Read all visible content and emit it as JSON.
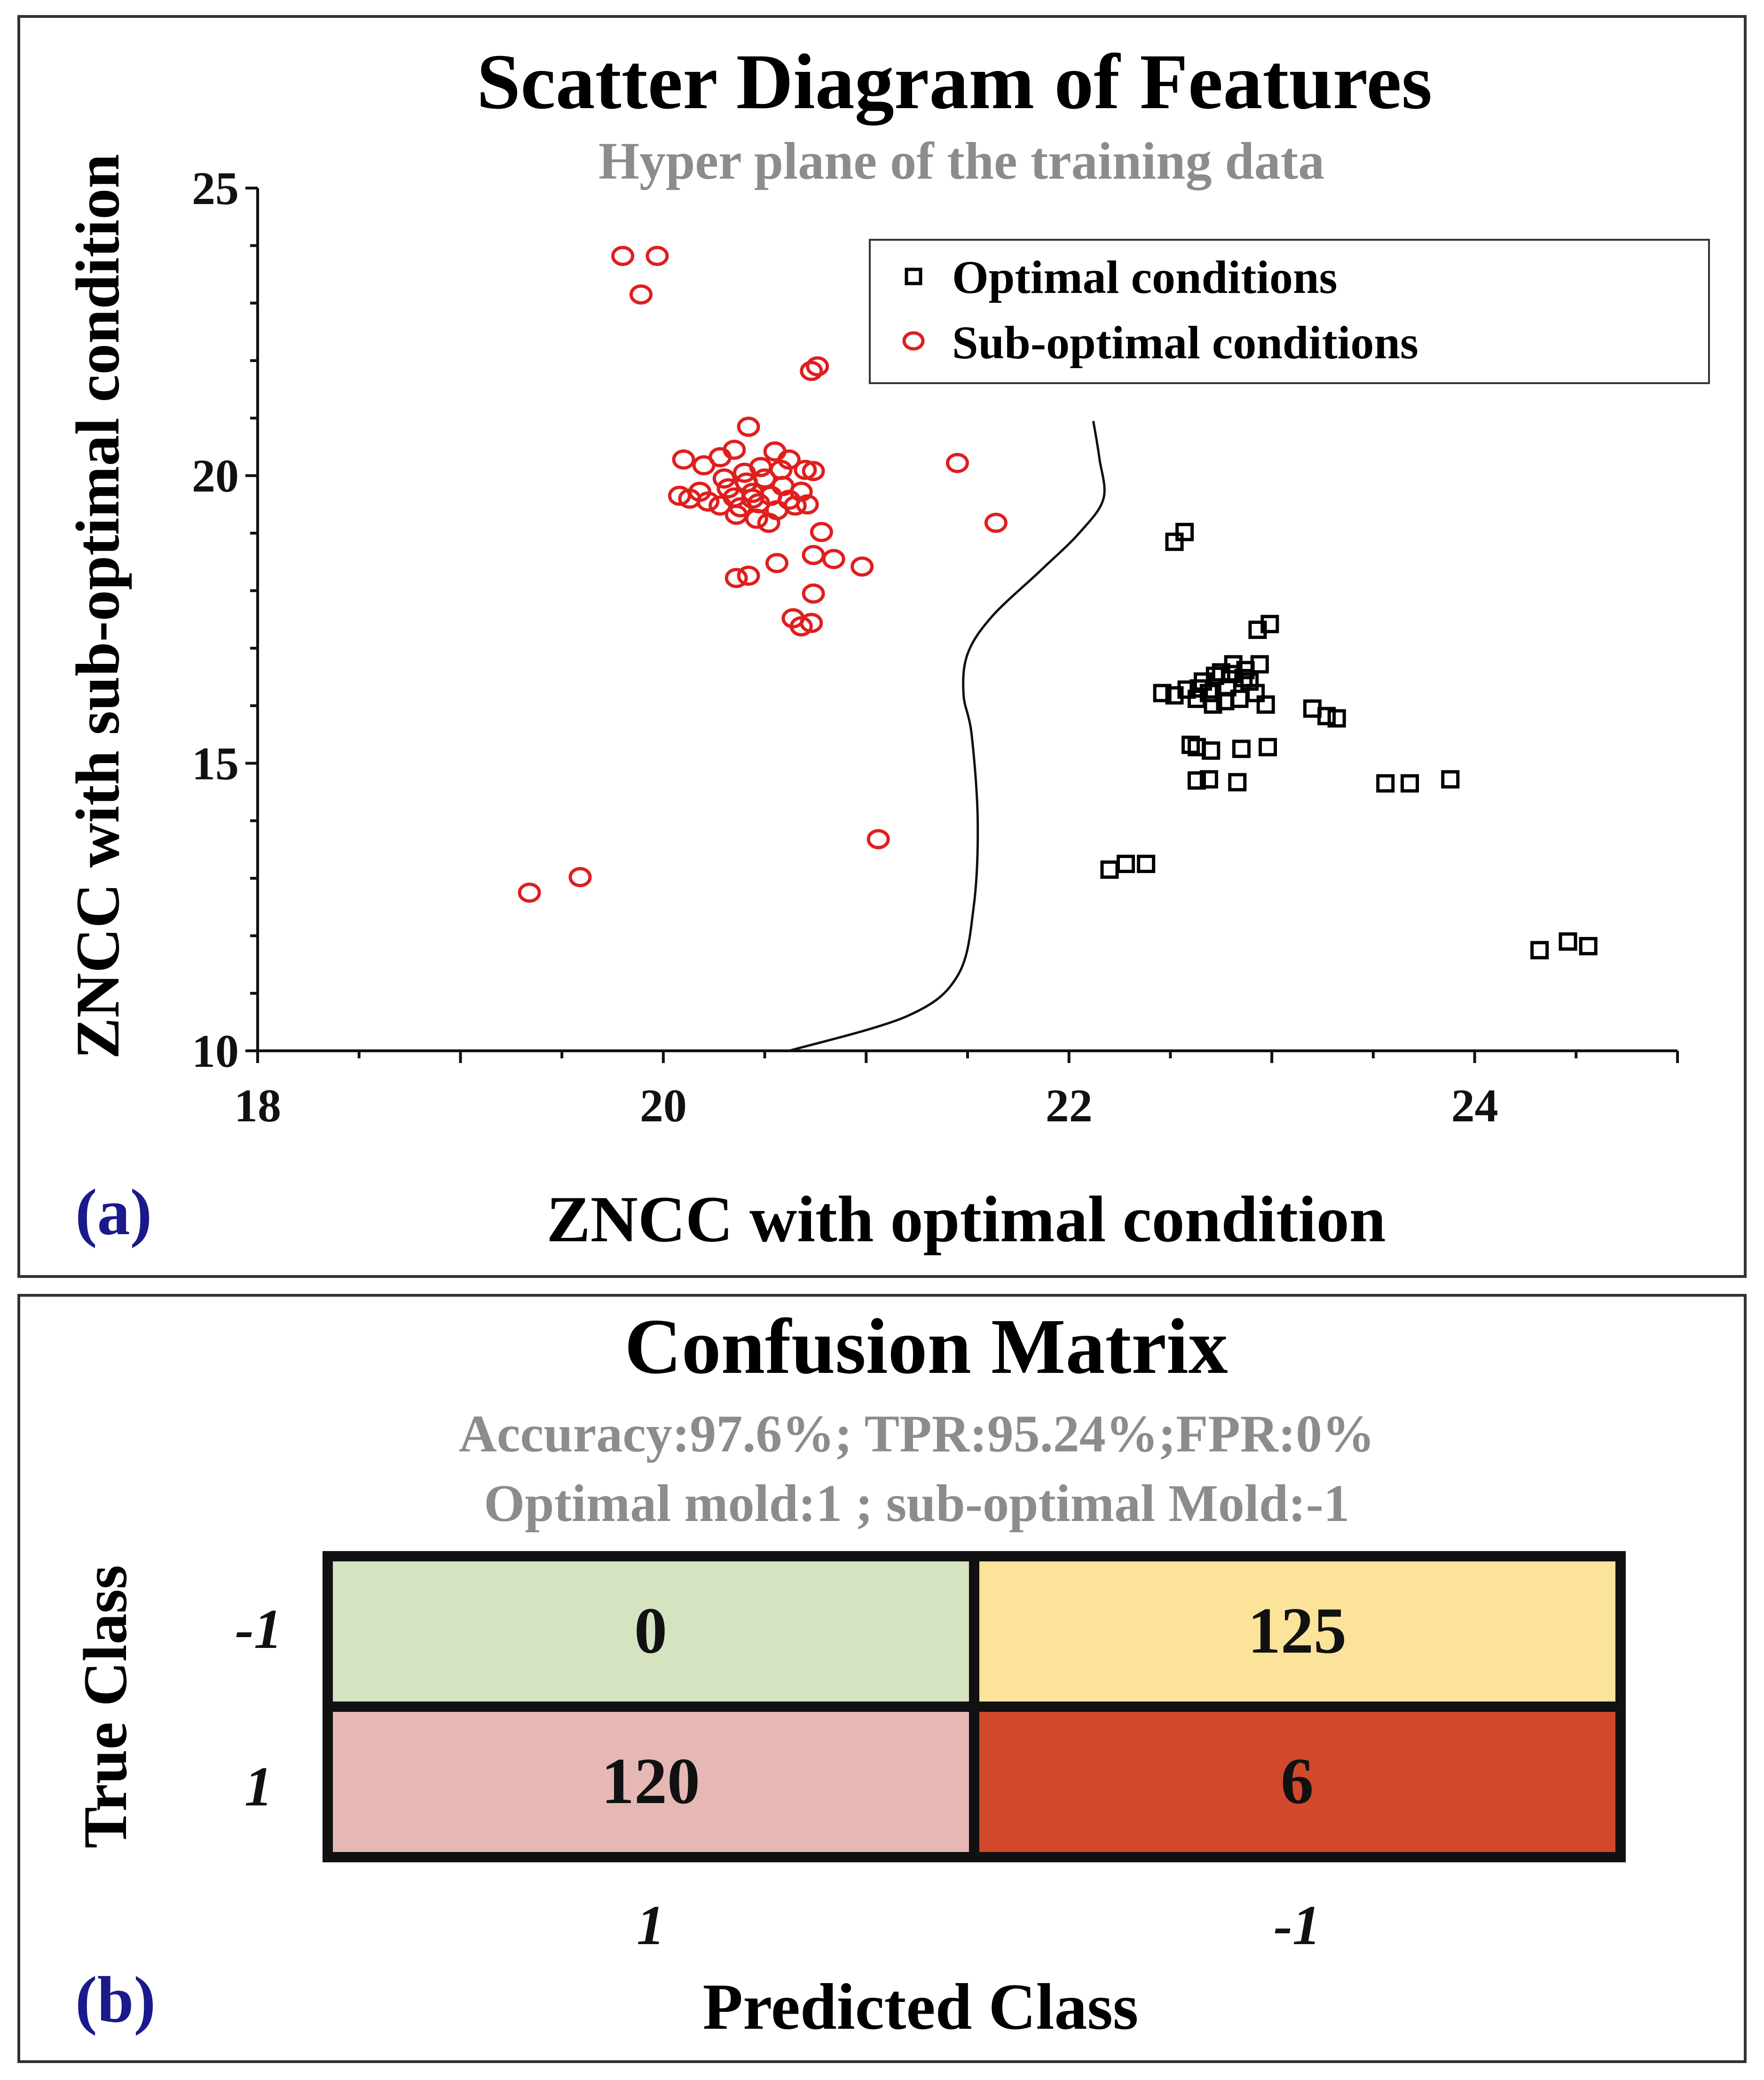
{
  "colors": {
    "frame": "#333333",
    "subtitle": "#8c8c8c",
    "panel_label": "#1a1a8c",
    "optimal": "#000000",
    "suboptimal": "#e01e1e",
    "cell_tl": "#d5e3c0",
    "cell_tr": "#fbe39a",
    "cell_bl": "#e6b8b5",
    "cell_br": "#d1482c"
  },
  "panel_a": {
    "label": "(a)",
    "chart_data": {
      "type": "scatter",
      "title": "Scatter Diagram of Features",
      "subtitle": "Hyper plane of the training data",
      "xlabel": "ZNCC with optimal condition",
      "ylabel": "ZNCC with sub-optimal condition",
      "xlim": [
        18,
        25
      ],
      "ylim": [
        10,
        25
      ],
      "xticks": [
        18,
        20,
        22,
        24
      ],
      "yticks": [
        10,
        15,
        20,
        25
      ],
      "legend": {
        "placement": "top-right",
        "entries": [
          "Optimal conditions",
          "Sub-optimal conditions"
        ]
      },
      "series": [
        {
          "name": "Optimal conditions",
          "marker": "square",
          "points": [
            [
              22.52,
              18.85
            ],
            [
              22.57,
              19.02
            ],
            [
              22.93,
              17.32
            ],
            [
              22.99,
              17.42
            ],
            [
              22.46,
              16.22
            ],
            [
              22.52,
              16.18
            ],
            [
              22.58,
              16.28
            ],
            [
              22.63,
              16.12
            ],
            [
              22.66,
              16.42
            ],
            [
              22.69,
              16.22
            ],
            [
              22.72,
              16.52
            ],
            [
              22.75,
              16.58
            ],
            [
              22.78,
              16.32
            ],
            [
              22.81,
              16.72
            ],
            [
              22.84,
              16.12
            ],
            [
              22.87,
              16.62
            ],
            [
              22.89,
              16.42
            ],
            [
              22.92,
              16.22
            ],
            [
              22.94,
              16.72
            ],
            [
              22.97,
              16.02
            ],
            [
              22.71,
              16.02
            ],
            [
              22.77,
              16.08
            ],
            [
              22.86,
              16.48
            ],
            [
              22.64,
              16.3
            ],
            [
              22.8,
              16.55
            ],
            [
              23.2,
              15.95
            ],
            [
              23.27,
              15.82
            ],
            [
              23.32,
              15.78
            ],
            [
              22.6,
              15.32
            ],
            [
              22.63,
              15.28
            ],
            [
              22.7,
              15.22
            ],
            [
              22.85,
              15.25
            ],
            [
              22.98,
              15.28
            ],
            [
              22.63,
              14.7
            ],
            [
              22.69,
              14.72
            ],
            [
              22.83,
              14.67
            ],
            [
              23.56,
              14.65
            ],
            [
              23.68,
              14.65
            ],
            [
              23.88,
              14.72
            ],
            [
              22.2,
              13.15
            ],
            [
              22.28,
              13.25
            ],
            [
              22.38,
              13.25
            ],
            [
              24.32,
              11.75
            ],
            [
              24.46,
              11.9
            ],
            [
              24.56,
              11.82
            ]
          ]
        },
        {
          "name": "Sub-optimal conditions",
          "marker": "circle",
          "points": [
            [
              19.8,
              23.82
            ],
            [
              19.97,
              23.82
            ],
            [
              19.89,
              23.15
            ],
            [
              20.73,
              21.82
            ],
            [
              20.76,
              21.9
            ],
            [
              20.42,
              20.85
            ],
            [
              20.1,
              20.28
            ],
            [
              20.2,
              20.18
            ],
            [
              20.28,
              20.32
            ],
            [
              20.35,
              20.45
            ],
            [
              20.48,
              20.15
            ],
            [
              20.55,
              20.42
            ],
            [
              20.62,
              20.28
            ],
            [
              20.7,
              20.1
            ],
            [
              20.74,
              20.08
            ],
            [
              20.08,
              19.65
            ],
            [
              20.13,
              19.6
            ],
            [
              20.18,
              19.72
            ],
            [
              20.22,
              19.55
            ],
            [
              20.28,
              19.48
            ],
            [
              20.32,
              19.78
            ],
            [
              20.35,
              19.62
            ],
            [
              20.38,
              19.45
            ],
            [
              20.41,
              19.88
            ],
            [
              20.44,
              19.7
            ],
            [
              20.47,
              19.52
            ],
            [
              20.5,
              19.95
            ],
            [
              20.53,
              19.65
            ],
            [
              20.56,
              19.4
            ],
            [
              20.59,
              19.82
            ],
            [
              20.62,
              19.58
            ],
            [
              20.65,
              19.48
            ],
            [
              20.68,
              19.72
            ],
            [
              20.71,
              19.5
            ],
            [
              20.46,
              19.25
            ],
            [
              20.52,
              19.18
            ],
            [
              20.3,
              19.95
            ],
            [
              20.4,
              20.05
            ],
            [
              20.58,
              20.1
            ],
            [
              20.44,
              19.6
            ],
            [
              20.36,
              19.32
            ],
            [
              20.78,
              19.02
            ],
            [
              20.74,
              18.62
            ],
            [
              20.84,
              18.55
            ],
            [
              20.56,
              18.48
            ],
            [
              20.98,
              18.42
            ],
            [
              20.36,
              18.22
            ],
            [
              20.42,
              18.26
            ],
            [
              20.74,
              17.95
            ],
            [
              20.64,
              17.52
            ],
            [
              20.68,
              17.38
            ],
            [
              20.73,
              17.44
            ],
            [
              21.45,
              20.22
            ],
            [
              21.64,
              19.18
            ],
            [
              21.06,
              13.68
            ],
            [
              19.59,
              13.02
            ],
            [
              19.34,
              12.75
            ]
          ]
        }
      ],
      "decision_boundary": [
        [
          20.62,
          10.0
        ],
        [
          21.2,
          10.6
        ],
        [
          21.45,
          11.3
        ],
        [
          21.53,
          12.5
        ],
        [
          21.55,
          14.0
        ],
        [
          21.52,
          15.5
        ],
        [
          21.48,
          16.2
        ],
        [
          21.5,
          16.9
        ],
        [
          21.62,
          17.55
        ],
        [
          21.86,
          18.35
        ],
        [
          22.05,
          19.0
        ],
        [
          22.17,
          19.6
        ],
        [
          22.15,
          20.3
        ],
        [
          22.12,
          20.95
        ]
      ]
    }
  },
  "panel_b": {
    "label": "(b)",
    "chart_data": {
      "type": "table",
      "title": "Confusion Matrix",
      "subtitle_lines": [
        "Accuracy:97.6%; TPR:95.24%;FPR:0%",
        "Optimal mold:1 ; sub-optimal Mold:-1"
      ],
      "ylabel": "True Class",
      "xlabel": "Predicted Class",
      "row_labels": [
        "-1",
        "1"
      ],
      "col_labels": [
        "1",
        "-1"
      ],
      "values": [
        [
          "0",
          "125"
        ],
        [
          "120",
          "6"
        ]
      ]
    }
  }
}
